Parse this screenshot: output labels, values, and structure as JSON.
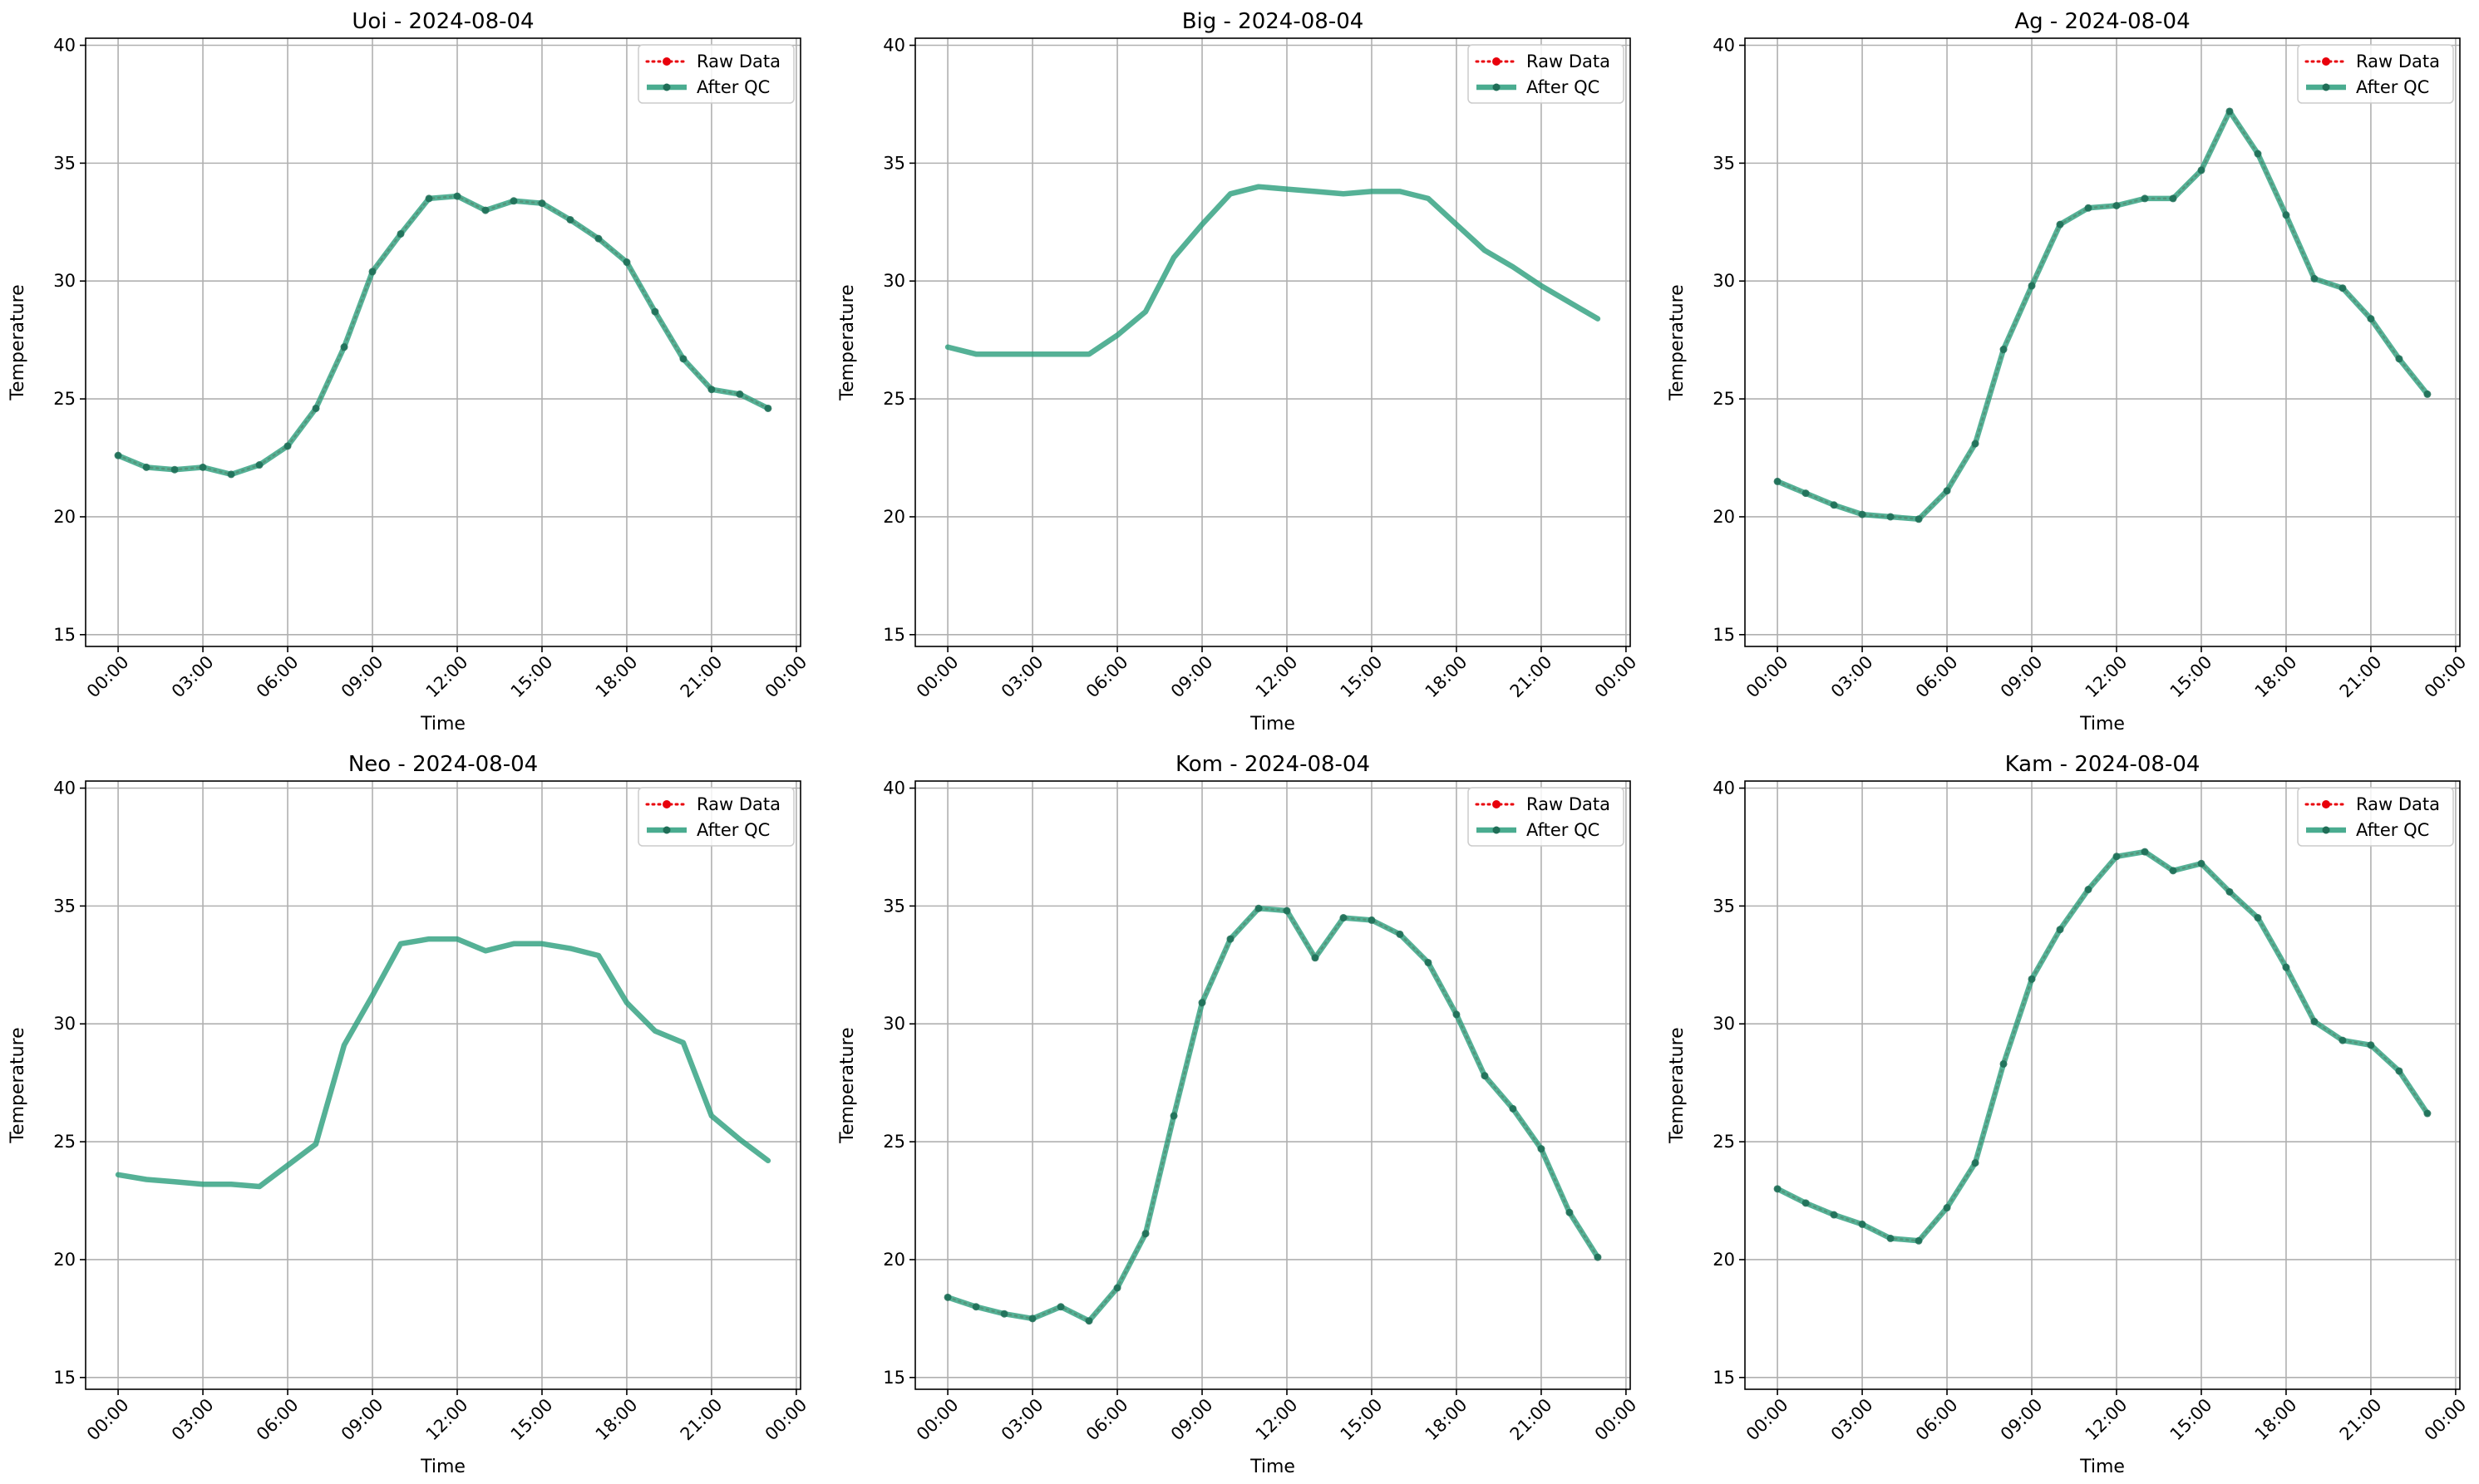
{
  "colors": {
    "raw": "#e8000b",
    "qc": "#2a9d7c",
    "grid": "#b0b0b0",
    "axis": "#000000"
  },
  "chart_data": [
    {
      "type": "line",
      "title": "Uoi - 2024-08-04",
      "xlabel": "Time",
      "ylabel": "Temperature",
      "ylim": [
        14.5,
        40.3
      ],
      "yticks": [
        15,
        20,
        25,
        30,
        35,
        40
      ],
      "x_hours": [
        0,
        1,
        2,
        3,
        4,
        5,
        6,
        7,
        8,
        9,
        10,
        11,
        12,
        13,
        14,
        15,
        16,
        17,
        18,
        19,
        20,
        21,
        22,
        23
      ],
      "xticks": [
        "00:00",
        "03:00",
        "06:00",
        "09:00",
        "12:00",
        "15:00",
        "18:00",
        "21:00",
        "00:00"
      ],
      "grid": true,
      "legend_position": "top-right",
      "series": [
        {
          "name": "Raw Data",
          "style": "dotted",
          "values": [
            22.6,
            22.1,
            22.0,
            22.1,
            21.8,
            22.2,
            23.0,
            24.6,
            27.2,
            30.4,
            32.0,
            33.5,
            33.6,
            33.0,
            33.4,
            33.3,
            32.6,
            31.8,
            30.8,
            28.7,
            26.7,
            25.4,
            25.2,
            24.6
          ]
        },
        {
          "name": "After QC",
          "style": "solid",
          "values": [
            22.6,
            22.1,
            22.0,
            22.1,
            21.8,
            22.2,
            23.0,
            24.6,
            27.2,
            30.4,
            32.0,
            33.5,
            33.6,
            33.0,
            33.4,
            33.3,
            32.6,
            31.8,
            30.8,
            28.7,
            26.7,
            25.4,
            25.2,
            24.6
          ]
        }
      ]
    },
    {
      "type": "line",
      "title": "Big - 2024-08-04",
      "xlabel": "Time",
      "ylabel": "Temperature",
      "ylim": [
        14.5,
        40.3
      ],
      "yticks": [
        15,
        20,
        25,
        30,
        35,
        40
      ],
      "x_hours": [
        0,
        1,
        2,
        3,
        4,
        5,
        6,
        7,
        8,
        9,
        10,
        11,
        12,
        13,
        14,
        15,
        16,
        17,
        18,
        19,
        20,
        21,
        22,
        23
      ],
      "xticks": [
        "00:00",
        "03:00",
        "06:00",
        "09:00",
        "12:00",
        "15:00",
        "18:00",
        "21:00",
        "00:00"
      ],
      "grid": true,
      "legend_position": "top-right",
      "series": [
        {
          "name": "Raw Data",
          "style": "hidden",
          "values": [
            27.2,
            26.9,
            26.9,
            26.9,
            26.9,
            26.9,
            27.7,
            28.7,
            31.0,
            32.4,
            33.7,
            34.0,
            33.9,
            33.8,
            33.7,
            33.8,
            33.8,
            33.5,
            32.4,
            31.3,
            30.6,
            29.8,
            29.1,
            28.4
          ]
        },
        {
          "name": "After QC",
          "style": "solid",
          "markers": false,
          "values": [
            27.2,
            26.9,
            26.9,
            26.9,
            26.9,
            26.9,
            27.7,
            28.7,
            31.0,
            32.4,
            33.7,
            34.0,
            33.9,
            33.8,
            33.7,
            33.8,
            33.8,
            33.5,
            32.4,
            31.3,
            30.6,
            29.8,
            29.1,
            28.4
          ]
        }
      ]
    },
    {
      "type": "line",
      "title": "Ag - 2024-08-04",
      "xlabel": "Time",
      "ylabel": "Temperature",
      "ylim": [
        14.5,
        40.3
      ],
      "yticks": [
        15,
        20,
        25,
        30,
        35,
        40
      ],
      "x_hours": [
        0,
        1,
        2,
        3,
        4,
        5,
        6,
        7,
        8,
        9,
        10,
        11,
        12,
        13,
        14,
        15,
        16,
        17,
        18,
        19,
        20,
        21,
        22,
        23
      ],
      "xticks": [
        "00:00",
        "03:00",
        "06:00",
        "09:00",
        "12:00",
        "15:00",
        "18:00",
        "21:00",
        "00:00"
      ],
      "grid": true,
      "legend_position": "top-right",
      "series": [
        {
          "name": "Raw Data",
          "style": "dotted",
          "values": [
            21.5,
            21.0,
            20.5,
            20.1,
            20.0,
            19.9,
            21.1,
            23.1,
            27.1,
            29.8,
            32.4,
            33.1,
            33.2,
            33.5,
            33.5,
            34.7,
            37.2,
            35.4,
            32.8,
            30.1,
            29.7,
            28.4,
            26.7,
            25.2
          ]
        },
        {
          "name": "After QC",
          "style": "solid",
          "values": [
            21.5,
            21.0,
            20.5,
            20.1,
            20.0,
            19.9,
            21.1,
            23.1,
            27.1,
            29.8,
            32.4,
            33.1,
            33.2,
            33.5,
            33.5,
            34.7,
            37.2,
            35.4,
            32.8,
            30.1,
            29.7,
            28.4,
            26.7,
            25.2
          ]
        }
      ]
    },
    {
      "type": "line",
      "title": "Neo - 2024-08-04",
      "xlabel": "Time",
      "ylabel": "Temperature",
      "ylim": [
        14.5,
        40.3
      ],
      "yticks": [
        15,
        20,
        25,
        30,
        35,
        40
      ],
      "x_hours": [
        0,
        1,
        2,
        3,
        4,
        5,
        6,
        7,
        8,
        9,
        10,
        11,
        12,
        13,
        14,
        15,
        16,
        17,
        18,
        19,
        20,
        21,
        22,
        23
      ],
      "xticks": [
        "00:00",
        "03:00",
        "06:00",
        "09:00",
        "12:00",
        "15:00",
        "18:00",
        "21:00",
        "00:00"
      ],
      "grid": true,
      "legend_position": "top-right",
      "series": [
        {
          "name": "Raw Data",
          "style": "hidden",
          "values": [
            23.6,
            23.4,
            23.3,
            23.2,
            23.2,
            23.1,
            24.0,
            24.9,
            29.1,
            31.2,
            33.4,
            33.6,
            33.6,
            33.1,
            33.4,
            33.4,
            33.2,
            32.9,
            30.9,
            29.7,
            29.2,
            26.1,
            25.1,
            24.2
          ]
        },
        {
          "name": "After QC",
          "style": "solid",
          "markers": false,
          "values": [
            23.6,
            23.4,
            23.3,
            23.2,
            23.2,
            23.1,
            24.0,
            24.9,
            29.1,
            31.2,
            33.4,
            33.6,
            33.6,
            33.1,
            33.4,
            33.4,
            33.2,
            32.9,
            30.9,
            29.7,
            29.2,
            26.1,
            25.1,
            24.2
          ]
        }
      ]
    },
    {
      "type": "line",
      "title": "Kom - 2024-08-04",
      "xlabel": "Time",
      "ylabel": "Temperature",
      "ylim": [
        14.5,
        40.3
      ],
      "yticks": [
        15,
        20,
        25,
        30,
        35,
        40
      ],
      "x_hours": [
        0,
        1,
        2,
        3,
        4,
        5,
        6,
        7,
        8,
        9,
        10,
        11,
        12,
        13,
        14,
        15,
        16,
        17,
        18,
        19,
        20,
        21,
        22,
        23
      ],
      "xticks": [
        "00:00",
        "03:00",
        "06:00",
        "09:00",
        "12:00",
        "15:00",
        "18:00",
        "21:00",
        "00:00"
      ],
      "grid": true,
      "legend_position": "top-right",
      "series": [
        {
          "name": "Raw Data",
          "style": "dotted",
          "values": [
            18.4,
            18.0,
            17.7,
            17.5,
            18.0,
            17.4,
            18.8,
            21.1,
            26.1,
            30.9,
            33.6,
            34.9,
            34.8,
            32.8,
            34.5,
            34.4,
            33.8,
            32.6,
            30.4,
            27.8,
            26.4,
            24.7,
            22.0,
            20.1
          ]
        },
        {
          "name": "After QC",
          "style": "solid",
          "values": [
            18.4,
            18.0,
            17.7,
            17.5,
            18.0,
            17.4,
            18.8,
            21.1,
            26.1,
            30.9,
            33.6,
            34.9,
            34.8,
            32.8,
            34.5,
            34.4,
            33.8,
            32.6,
            30.4,
            27.8,
            26.4,
            24.7,
            22.0,
            20.1
          ]
        }
      ]
    },
    {
      "type": "line",
      "title": "Kam - 2024-08-04",
      "xlabel": "Time",
      "ylabel": "Temperature",
      "ylim": [
        14.5,
        40.3
      ],
      "yticks": [
        15,
        20,
        25,
        30,
        35,
        40
      ],
      "x_hours": [
        0,
        1,
        2,
        3,
        4,
        5,
        6,
        7,
        8,
        9,
        10,
        11,
        12,
        13,
        14,
        15,
        16,
        17,
        18,
        19,
        20,
        21,
        22,
        23
      ],
      "xticks": [
        "00:00",
        "03:00",
        "06:00",
        "09:00",
        "12:00",
        "15:00",
        "18:00",
        "21:00",
        "00:00"
      ],
      "grid": true,
      "legend_position": "top-right",
      "series": [
        {
          "name": "Raw Data",
          "style": "dotted",
          "values": [
            23.0,
            22.4,
            21.9,
            21.5,
            20.9,
            20.8,
            22.2,
            24.1,
            28.3,
            31.9,
            34.0,
            35.7,
            37.1,
            37.3,
            36.5,
            36.8,
            35.6,
            34.5,
            32.4,
            30.1,
            29.3,
            29.1,
            28.0,
            26.2
          ]
        },
        {
          "name": "After QC",
          "style": "solid",
          "values": [
            23.0,
            22.4,
            21.9,
            21.5,
            20.9,
            20.8,
            22.2,
            24.1,
            28.3,
            31.9,
            34.0,
            35.7,
            37.1,
            37.3,
            36.5,
            36.8,
            35.6,
            34.5,
            32.4,
            30.1,
            29.3,
            29.1,
            28.0,
            26.2
          ]
        }
      ]
    }
  ]
}
